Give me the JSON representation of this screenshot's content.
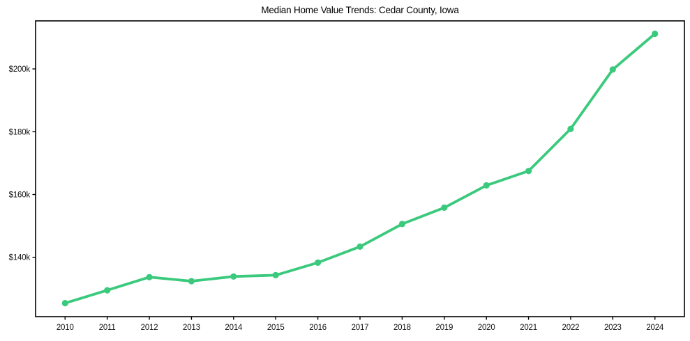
{
  "chart_data": {
    "type": "line",
    "title": "Median Home Value Trends: Cedar County, Iowa",
    "x": [
      2010,
      2011,
      2012,
      2013,
      2014,
      2015,
      2016,
      2017,
      2018,
      2019,
      2020,
      2021,
      2022,
      2023,
      2024
    ],
    "values": [
      125400,
      129500,
      133700,
      132400,
      133900,
      134300,
      138300,
      143400,
      150600,
      155800,
      162900,
      167500,
      180900,
      199800,
      211200
    ],
    "xlabel": "",
    "ylabel": "",
    "xlim": [
      2009.3,
      2024.7
    ],
    "ylim": [
      121100,
      215300
    ],
    "xtick_labels": [
      "2010",
      "2011",
      "2012",
      "2013",
      "2014",
      "2015",
      "2016",
      "2017",
      "2018",
      "2019",
      "2020",
      "2021",
      "2022",
      "2023",
      "2024"
    ],
    "ytick_values": [
      140000,
      160000,
      180000,
      200000
    ],
    "ytick_labels": [
      "$140k",
      "$160k",
      "$180k",
      "$200k"
    ],
    "grid": false,
    "legend": "none",
    "marker": "circle",
    "line_color": "#3bca7d",
    "axis_color": "#000000",
    "text_color": "#111111",
    "background_color": "#ffffff"
  }
}
